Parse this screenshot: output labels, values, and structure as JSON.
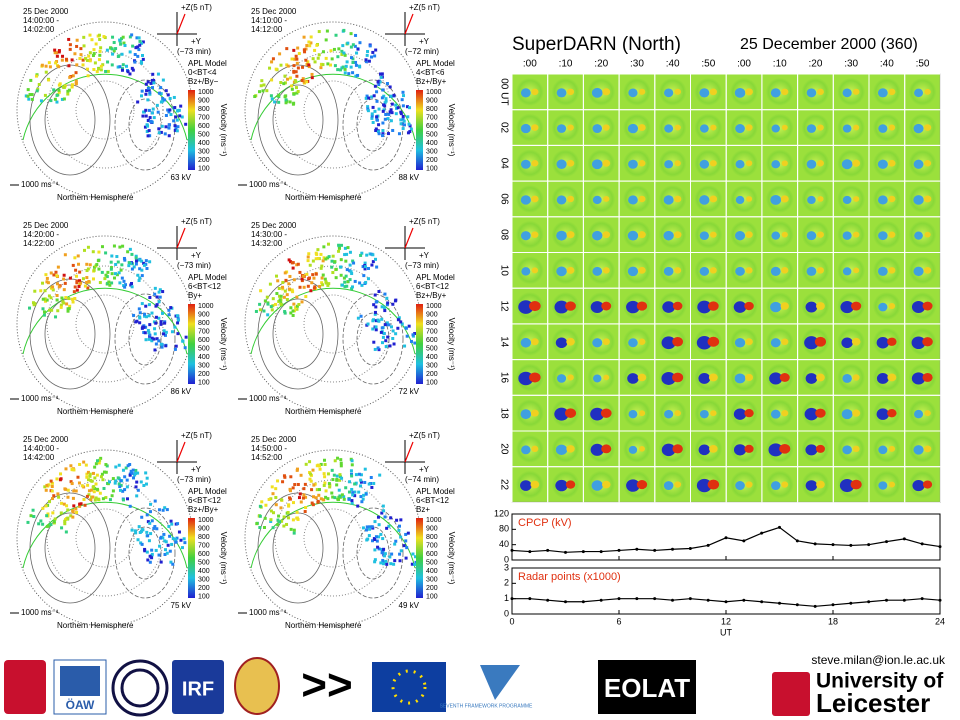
{
  "panels": [
    {
      "date": "25 Dec 2000",
      "start": "14:00:00 -",
      "end": "14:02:00",
      "imf": "+Z(5 nT)",
      "y_axis": "+Y",
      "delay": "(−73 min)",
      "model": "APL Model",
      "bt": "0<BT<4",
      "sector": "Bz+/By−",
      "potential": "63 kV"
    },
    {
      "date": "25 Dec 2000",
      "start": "14:10:00 -",
      "end": "14:12:00",
      "imf": "+Z(5 nT)",
      "y_axis": "+Y",
      "delay": "(−72 min)",
      "model": "APL Model",
      "bt": "4<BT<6",
      "sector": "Bz+/By+",
      "potential": "88 kV"
    },
    {
      "date": "25 Dec 2000",
      "start": "14:20:00 -",
      "end": "14:22:00",
      "imf": "+Z(5 nT)",
      "y_axis": "+Y",
      "delay": "(−73 min)",
      "model": "APL Model",
      "bt": "6<BT<12",
      "sector": "By+",
      "potential": "86 kV"
    },
    {
      "date": "25 Dec 2000",
      "start": "14:30:00 -",
      "end": "14:32:00",
      "imf": "+Z(5 nT)",
      "y_axis": "+Y",
      "delay": "(−73 min)",
      "model": "APL Model",
      "bt": "6<BT<12",
      "sector": "Bz+/By+",
      "potential": "72 kV"
    },
    {
      "date": "25 Dec 2000",
      "start": "14:40:00 -",
      "end": "14:42:00",
      "imf": "+Z(5 nT)",
      "y_axis": "+Y",
      "delay": "(−73 min)",
      "model": "APL Model",
      "bt": "6<BT<12",
      "sector": "Bz+/By+",
      "potential": "75 kV"
    },
    {
      "date": "25 Dec 2000",
      "start": "14:50:00 -",
      "end": "14:52:00",
      "imf": "+Z(5 nT)",
      "y_axis": "+Y",
      "delay": "(−74 min)",
      "model": "APL Model",
      "bt": "6<BT<12",
      "sector": "Bz+",
      "potential": "49 kV"
    }
  ],
  "panel_common": {
    "velocity_label": "Velocity (ms⁻¹)",
    "velocity_ticks": [
      1000,
      900,
      800,
      700,
      600,
      500,
      400,
      300,
      200,
      100
    ],
    "scale": "1000 ms⁻¹",
    "hemisphere": "Northern Hemisphere"
  },
  "summary": {
    "title": "SuperDARN (North)",
    "date": "25 December 2000 (360)",
    "columns": [
      ":00",
      ":10",
      ":20",
      ":30",
      ":40",
      ":50",
      ":00",
      ":10",
      ":20",
      ":30",
      ":40",
      ":50"
    ],
    "rows": [
      "00 UT",
      "02",
      "04",
      "06",
      "08",
      "10",
      "12",
      "14",
      "16",
      "18",
      "20",
      "22"
    ]
  },
  "timeseries": [
    {
      "name": "CPCP (kV)",
      "ylim": [
        0,
        120
      ],
      "yticks": [
        0,
        40,
        80,
        120
      ],
      "x": [
        0,
        1,
        2,
        3,
        4,
        5,
        6,
        7,
        8,
        9,
        10,
        11,
        12,
        13,
        14,
        15,
        16,
        17,
        18,
        19,
        20,
        21,
        22,
        23,
        24
      ],
      "values": [
        25,
        22,
        25,
        20,
        22,
        22,
        25,
        28,
        25,
        28,
        30,
        38,
        58,
        50,
        70,
        85,
        50,
        42,
        40,
        38,
        40,
        48,
        55,
        42,
        35
      ]
    },
    {
      "name": "Radar points (x1000)",
      "ylim": [
        0,
        3
      ],
      "yticks": [
        0,
        1,
        2,
        3
      ],
      "x": [
        0,
        1,
        2,
        3,
        4,
        5,
        6,
        7,
        8,
        9,
        10,
        11,
        12,
        13,
        14,
        15,
        16,
        17,
        18,
        19,
        20,
        21,
        22,
        23,
        24
      ],
      "values": [
        1,
        1,
        0.9,
        0.8,
        0.8,
        0.9,
        1,
        1,
        1,
        0.9,
        1,
        0.9,
        0.8,
        0.9,
        0.8,
        0.7,
        0.6,
        0.5,
        0.6,
        0.7,
        0.8,
        0.9,
        0.9,
        1,
        0.9
      ]
    }
  ],
  "time_axis": {
    "xlim": [
      0,
      24
    ],
    "xticks": [
      0,
      6,
      12,
      18,
      24
    ],
    "label": "UT"
  },
  "footer": {
    "email": "steve.milan@ion.le.ac.uk",
    "oaw": "ÖAW",
    "irf": "IRF",
    "arrows": ">>",
    "fp7": "SEVENTH FRAMEWORK PROGRAMME",
    "eolat": "EOLAT",
    "uni_of": "University of",
    "uni": "Leicester"
  }
}
